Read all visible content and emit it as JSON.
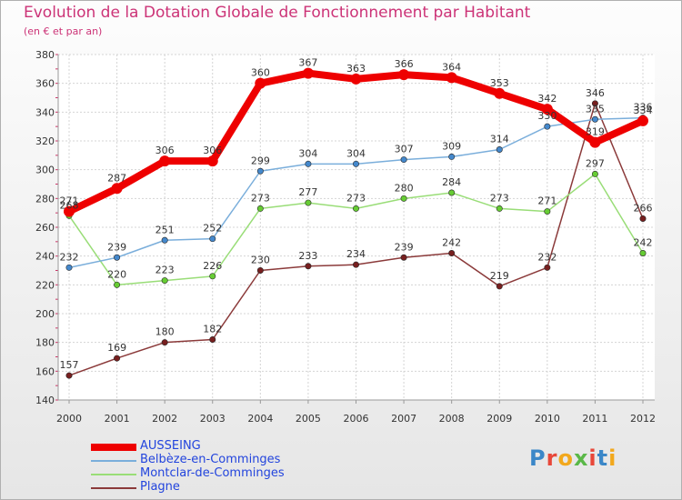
{
  "header": {
    "title": "Evolution de la Dotation Globale de Fonctionnement par Habitant",
    "subtitle": "(en € et par an)"
  },
  "brand": {
    "text": "Proxiti",
    "letter_colors": [
      "#3b87c8",
      "#e8483a",
      "#f2a81d",
      "#5ab848",
      "#e8483a",
      "#3b87c8",
      "#f2a81d"
    ]
  },
  "chart_data": {
    "type": "line",
    "title": "Evolution de la Dotation Globale de Fonctionnement par Habitant",
    "subtitle": "(en € et par an)",
    "x": [
      "2000",
      "2001",
      "2002",
      "2003",
      "2004",
      "2005",
      "2006",
      "2007",
      "2008",
      "2009",
      "2010",
      "2011",
      "2012"
    ],
    "ylim": [
      140,
      380
    ],
    "yticks": [
      140,
      160,
      180,
      200,
      220,
      240,
      260,
      280,
      300,
      320,
      340,
      360,
      380
    ],
    "grid": true,
    "legend_position": "bottom-left",
    "series": [
      {
        "name": "AUSSEING",
        "color": "#ee0000",
        "line_color": "#ee0000",
        "values": [
          271,
          287,
          306,
          306,
          360,
          367,
          363,
          366,
          364,
          353,
          342,
          319,
          334
        ],
        "labels": [
          "271",
          "287",
          "306",
          "306",
          "360",
          "367",
          "363",
          "366",
          "364",
          "353",
          "342",
          "319",
          "334"
        ]
      },
      {
        "name": "Belbèze-en-Comminges",
        "color": "#4488cc",
        "line_color": "#7aaedb",
        "values": [
          232,
          239,
          251,
          252,
          299,
          304,
          304,
          307,
          309,
          314,
          330,
          335,
          336
        ],
        "labels": [
          "232",
          "239",
          "251",
          "252",
          "299",
          "304",
          "304",
          "307",
          "309",
          "314",
          "330",
          "335",
          "336"
        ]
      },
      {
        "name": "Montclar-de-Comminges",
        "color": "#66cc33",
        "line_color": "#99dd77",
        "values": [
          268,
          220,
          223,
          226,
          273,
          277,
          273,
          280,
          284,
          273,
          271,
          297,
          242
        ],
        "labels": [
          "268",
          "220",
          "223",
          "226",
          "273",
          "277",
          "273",
          "280",
          "284",
          "273",
          "271",
          "297",
          "242"
        ]
      },
      {
        "name": "Plagne",
        "color": "#771f1f",
        "line_color": "#8b3a3a",
        "values": [
          157,
          169,
          180,
          182,
          230,
          233,
          234,
          239,
          242,
          219,
          232,
          346,
          266
        ],
        "labels": [
          "157",
          "169",
          "180",
          "182",
          "230",
          "233",
          "234",
          "239",
          "242",
          "219",
          "232",
          "346",
          "266"
        ]
      }
    ]
  }
}
